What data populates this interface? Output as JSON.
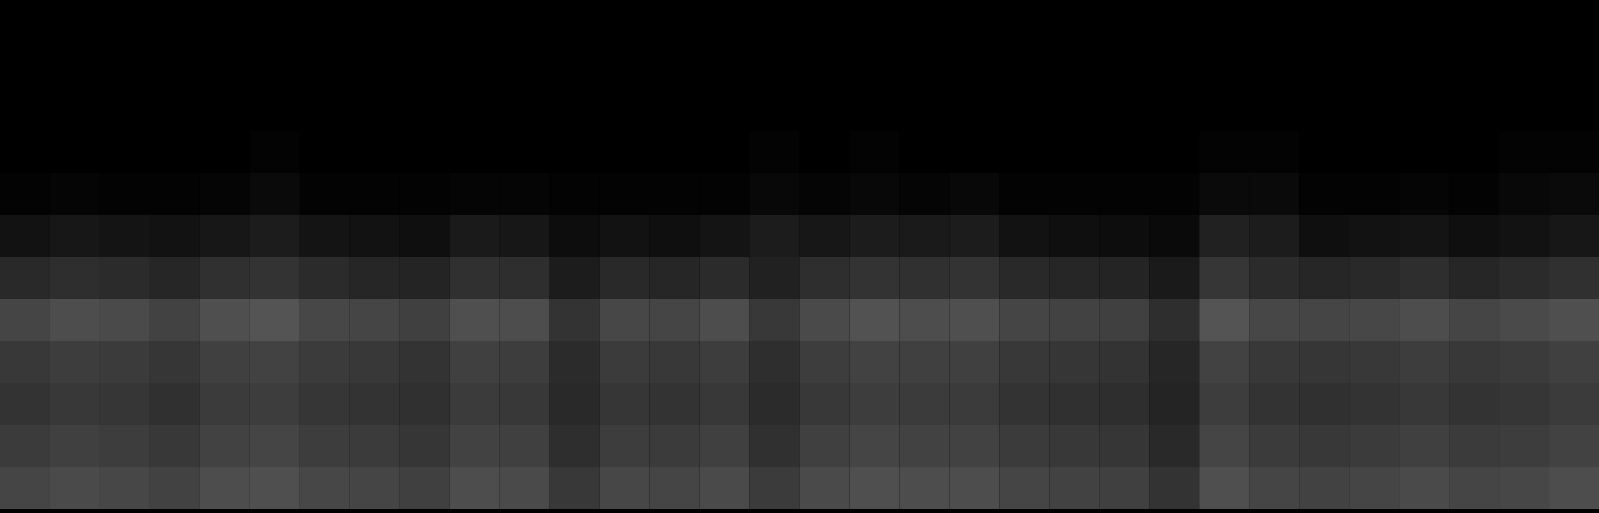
{
  "chart_data": {
    "type": "heatmap",
    "tick_labels": false,
    "zlim": [
      0,
      1
    ],
    "values": [
      [
        0,
        0,
        0,
        0,
        0,
        0,
        0,
        0,
        0,
        0,
        0,
        0,
        0,
        0,
        0,
        0,
        0,
        0,
        0,
        0,
        0,
        0,
        0,
        0,
        0,
        0,
        0,
        0,
        0,
        0,
        0,
        0
      ],
      [
        0,
        0,
        0,
        0,
        0,
        0,
        0,
        0,
        0,
        0,
        0,
        0,
        0,
        0,
        0,
        0,
        0,
        0,
        0,
        0,
        0,
        0,
        0,
        0,
        0,
        0,
        0,
        0,
        0,
        0,
        0,
        0
      ],
      [
        0,
        0,
        0,
        0,
        0,
        0,
        0,
        0,
        0,
        0,
        0,
        0,
        0,
        0,
        0,
        0,
        0,
        0,
        0,
        0,
        0,
        0,
        0,
        0,
        0,
        0,
        0,
        0,
        0,
        0,
        0,
        0
      ],
      [
        0,
        0,
        0,
        0,
        0,
        0.01,
        0,
        0,
        0,
        0,
        0,
        0,
        0,
        0,
        0,
        0.01,
        0,
        0.01,
        0,
        0,
        0,
        0,
        0,
        0,
        0.01,
        0.01,
        0,
        0,
        0,
        0,
        0.01,
        0.01
      ],
      [
        0.01,
        0.02,
        0.01,
        0.01,
        0.02,
        0.04,
        0.01,
        0.01,
        0.01,
        0.02,
        0.02,
        0.01,
        0.01,
        0.01,
        0.01,
        0.03,
        0.02,
        0.03,
        0.02,
        0.03,
        0.01,
        0.01,
        0.01,
        0.01,
        0.04,
        0.04,
        0.01,
        0.01,
        0.02,
        0.01,
        0.03,
        0.04
      ],
      [
        0.07,
        0.09,
        0.08,
        0.07,
        0.09,
        0.11,
        0.08,
        0.07,
        0.06,
        0.1,
        0.09,
        0.05,
        0.07,
        0.06,
        0.08,
        0.11,
        0.09,
        0.11,
        0.1,
        0.11,
        0.07,
        0.06,
        0.05,
        0.04,
        0.13,
        0.11,
        0.06,
        0.07,
        0.08,
        0.06,
        0.07,
        0.09
      ],
      [
        0.16,
        0.18,
        0.17,
        0.15,
        0.19,
        0.2,
        0.17,
        0.15,
        0.14,
        0.19,
        0.18,
        0.11,
        0.16,
        0.15,
        0.17,
        0.13,
        0.18,
        0.2,
        0.19,
        0.2,
        0.16,
        0.15,
        0.14,
        0.1,
        0.21,
        0.17,
        0.15,
        0.16,
        0.18,
        0.15,
        0.17,
        0.19
      ],
      [
        0.27,
        0.3,
        0.29,
        0.26,
        0.31,
        0.33,
        0.28,
        0.27,
        0.25,
        0.31,
        0.3,
        0.2,
        0.28,
        0.27,
        0.3,
        0.22,
        0.29,
        0.32,
        0.3,
        0.31,
        0.27,
        0.26,
        0.25,
        0.18,
        0.33,
        0.28,
        0.27,
        0.28,
        0.3,
        0.27,
        0.29,
        0.31
      ],
      [
        0.22,
        0.24,
        0.23,
        0.21,
        0.25,
        0.26,
        0.23,
        0.22,
        0.2,
        0.25,
        0.24,
        0.17,
        0.23,
        0.22,
        0.24,
        0.18,
        0.24,
        0.26,
        0.25,
        0.25,
        0.22,
        0.21,
        0.2,
        0.15,
        0.26,
        0.22,
        0.21,
        0.22,
        0.24,
        0.22,
        0.23,
        0.25
      ],
      [
        0.2,
        0.22,
        0.21,
        0.19,
        0.23,
        0.24,
        0.21,
        0.2,
        0.19,
        0.23,
        0.22,
        0.16,
        0.21,
        0.2,
        0.22,
        0.17,
        0.22,
        0.24,
        0.23,
        0.23,
        0.2,
        0.19,
        0.18,
        0.14,
        0.24,
        0.2,
        0.19,
        0.2,
        0.22,
        0.2,
        0.21,
        0.23
      ],
      [
        0.23,
        0.25,
        0.24,
        0.22,
        0.26,
        0.27,
        0.24,
        0.23,
        0.21,
        0.26,
        0.25,
        0.18,
        0.24,
        0.23,
        0.25,
        0.19,
        0.25,
        0.27,
        0.26,
        0.26,
        0.23,
        0.22,
        0.21,
        0.16,
        0.27,
        0.23,
        0.22,
        0.23,
        0.25,
        0.23,
        0.24,
        0.26
      ],
      [
        0.27,
        0.29,
        0.28,
        0.26,
        0.3,
        0.31,
        0.28,
        0.27,
        0.25,
        0.3,
        0.29,
        0.22,
        0.28,
        0.27,
        0.29,
        0.23,
        0.29,
        0.31,
        0.3,
        0.3,
        0.27,
        0.26,
        0.25,
        0.2,
        0.31,
        0.27,
        0.26,
        0.27,
        0.29,
        0.27,
        0.28,
        0.3
      ]
    ]
  }
}
